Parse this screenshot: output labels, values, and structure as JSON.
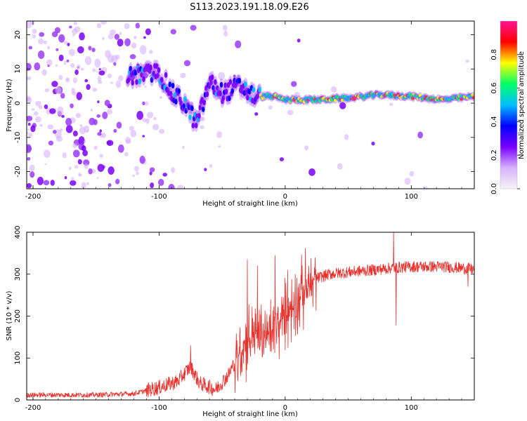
{
  "title": "S113.2023.191.18.09.E26",
  "chart_data": [
    {
      "type": "heatmap",
      "xlabel": "Height of straight line (km)",
      "ylabel": "Frequency (Hz)",
      "xlim": [
        -205,
        150
      ],
      "ylim": [
        -25,
        24
      ],
      "xticks": [
        -200,
        -100,
        0,
        100
      ],
      "yticks": [
        -20,
        -10,
        0,
        10,
        20
      ],
      "colorbar": {
        "label": "Normalized spectral amplitude",
        "range": [
          0,
          1
        ],
        "ticks": [
          0.0,
          0.2,
          0.4,
          0.6,
          0.8
        ],
        "colormap": [
          "#f4f4f4",
          "#d7b2ff",
          "#7a00ff",
          "#0000ff",
          "#00bfff",
          "#00ff66",
          "#ffff00",
          "#ff0000",
          "#ff1493"
        ]
      },
      "ridge": [
        {
          "x": -120,
          "y": 8
        },
        {
          "x": -100,
          "y": 9
        },
        {
          "x": -90,
          "y": 3
        },
        {
          "x": -80,
          "y": 0
        },
        {
          "x": -70,
          "y": -6
        },
        {
          "x": -60,
          "y": 6
        },
        {
          "x": -50,
          "y": 3
        },
        {
          "x": -35,
          "y": 5
        },
        {
          "x": -25,
          "y": 2
        },
        {
          "x": -10,
          "y": 2
        },
        {
          "x": 0,
          "y": 1
        },
        {
          "x": 25,
          "y": 1
        },
        {
          "x": 50,
          "y": 1.5
        },
        {
          "x": 75,
          "y": 2.5
        },
        {
          "x": 100,
          "y": 2
        },
        {
          "x": 125,
          "y": 1
        },
        {
          "x": 150,
          "y": 2
        }
      ]
    },
    {
      "type": "line",
      "xlabel": "Height of straight line (km)",
      "ylabel": "SNR (10 * v/v)",
      "xlim": [
        -205,
        150
      ],
      "ylim": [
        0,
        400
      ],
      "xticks": [
        -200,
        -100,
        0,
        100
      ],
      "yticks": [
        0,
        100,
        200,
        300,
        400
      ],
      "color": "#e8322e",
      "envelope": [
        {
          "x": -205,
          "y": 12
        },
        {
          "x": -150,
          "y": 12
        },
        {
          "x": -120,
          "y": 15
        },
        {
          "x": -100,
          "y": 30
        },
        {
          "x": -85,
          "y": 45
        },
        {
          "x": -75,
          "y": 80
        },
        {
          "x": -68,
          "y": 40
        },
        {
          "x": -55,
          "y": 25
        },
        {
          "x": -45,
          "y": 60
        },
        {
          "x": -35,
          "y": 120
        },
        {
          "x": -25,
          "y": 160
        },
        {
          "x": -15,
          "y": 150
        },
        {
          "x": -5,
          "y": 180
        },
        {
          "x": 5,
          "y": 220
        },
        {
          "x": 15,
          "y": 260
        },
        {
          "x": 25,
          "y": 290
        },
        {
          "x": 35,
          "y": 300
        },
        {
          "x": 50,
          "y": 305
        },
        {
          "x": 70,
          "y": 310
        },
        {
          "x": 85,
          "y": 315
        },
        {
          "x": 100,
          "y": 318
        },
        {
          "x": 125,
          "y": 318
        },
        {
          "x": 150,
          "y": 312
        }
      ],
      "spikes": [
        {
          "x": -75,
          "y": 130
        },
        {
          "x": -30,
          "y": 335
        },
        {
          "x": -22,
          "y": 320
        },
        {
          "x": -8,
          "y": 345
        },
        {
          "x": 2,
          "y": 310
        },
        {
          "x": 8,
          "y": 300
        },
        {
          "x": 86,
          "y": 400
        },
        {
          "x": 88,
          "y": 178
        },
        {
          "x": 145,
          "y": 270
        }
      ]
    }
  ]
}
